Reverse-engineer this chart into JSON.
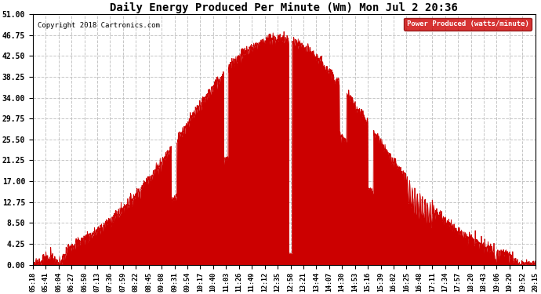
{
  "title": "Daily Energy Produced Per Minute (Wm) Mon Jul 2 20:36",
  "copyright": "Copyright 2018 Cartronics.com",
  "legend_label": "Power Produced (watts/minute)",
  "legend_bg": "#cc0000",
  "legend_text_color": "#ffffff",
  "line_color": "#cc0000",
  "fill_color": "#cc0000",
  "background_color": "#ffffff",
  "grid_color": "#c0c0c0",
  "ylim": [
    0,
    51
  ],
  "yticks": [
    0.0,
    4.25,
    8.5,
    12.75,
    17.0,
    21.25,
    25.5,
    29.75,
    34.0,
    38.25,
    42.5,
    46.75,
    51.0
  ],
  "xtick_labels": [
    "05:18",
    "05:41",
    "06:04",
    "06:27",
    "06:50",
    "07:13",
    "07:36",
    "07:59",
    "08:22",
    "08:45",
    "09:08",
    "09:31",
    "09:54",
    "10:17",
    "10:40",
    "11:03",
    "11:26",
    "11:49",
    "12:12",
    "12:35",
    "12:58",
    "13:21",
    "13:44",
    "14:07",
    "14:30",
    "14:53",
    "15:16",
    "15:39",
    "16:02",
    "16:25",
    "16:48",
    "17:11",
    "17:34",
    "17:57",
    "18:20",
    "18:43",
    "19:06",
    "19:29",
    "19:52",
    "20:15"
  ]
}
